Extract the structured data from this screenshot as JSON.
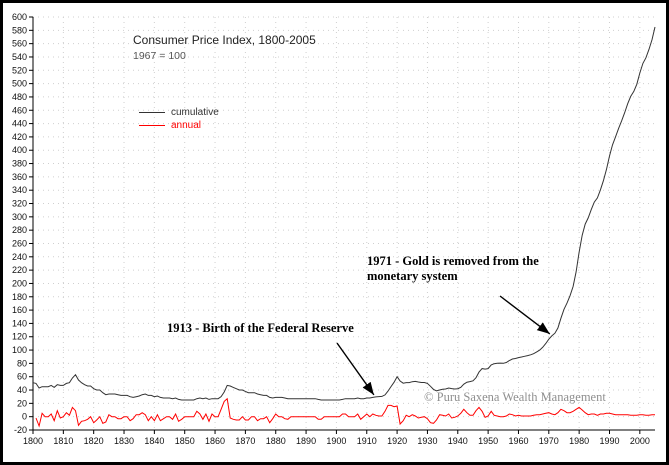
{
  "title": "Consumer Price Index, 1800-2005",
  "subtitle": "1967 = 100",
  "legend": {
    "items": [
      {
        "label": "cumulative",
        "color": "#333333"
      },
      {
        "label": "annual",
        "color": "#ff0000"
      }
    ]
  },
  "annotations_text": {
    "a1913": "1913 - Birth of the Federal Reserve",
    "a1971_line1": "1971  - Gold is removed from the",
    "a1971_line2": "monetary system"
  },
  "watermark": "© Puru Saxena Wealth Management",
  "colors": {
    "grid": "#cfcfcf",
    "axis": "#000000",
    "cumulative": "#333333",
    "annual": "#ff0000"
  },
  "chart_data": {
    "type": "line",
    "title": "Consumer Price Index, 1800-2005",
    "subtitle": "1967 = 100",
    "xlim": [
      1800,
      2005
    ],
    "ylim": [
      -20,
      600
    ],
    "grid": "dotted",
    "legend_position": "upper-left-inside",
    "x_ticks": [
      1800,
      1810,
      1820,
      1830,
      1840,
      1850,
      1860,
      1870,
      1880,
      1890,
      1900,
      1910,
      1920,
      1930,
      1940,
      1950,
      1960,
      1970,
      1980,
      1990,
      2000
    ],
    "y_ticks": [
      -20,
      0,
      20,
      40,
      60,
      80,
      100,
      120,
      140,
      160,
      180,
      200,
      220,
      240,
      260,
      280,
      300,
      320,
      340,
      360,
      380,
      400,
      420,
      440,
      460,
      480,
      500,
      520,
      540,
      560,
      580,
      600
    ],
    "series": [
      {
        "name": "cumulative",
        "color": "#333333",
        "start_year": 1800,
        "values": [
          51,
          50,
          43,
          45,
          45,
          45,
          47,
          44,
          48,
          47,
          47,
          50,
          51,
          58,
          63,
          55,
          51,
          48,
          46,
          46,
          42,
          40,
          40,
          36,
          33,
          34,
          34,
          34,
          33,
          32,
          32,
          32,
          30,
          29,
          30,
          31,
          33,
          34,
          32,
          32,
          30,
          31,
          29,
          28,
          28,
          28,
          27,
          28,
          26,
          25,
          25,
          25,
          25,
          25,
          27,
          28,
          27,
          28,
          26,
          27,
          27,
          27,
          30,
          37,
          47,
          46,
          44,
          42,
          40,
          40,
          38,
          36,
          36,
          36,
          34,
          33,
          32,
          32,
          29,
          28,
          29,
          29,
          29,
          28,
          27,
          27,
          27,
          27,
          27,
          27,
          27,
          27,
          27,
          27,
          26,
          25,
          25,
          25,
          25,
          25,
          25,
          25,
          26,
          27,
          27,
          27,
          27,
          28,
          27,
          27,
          28,
          28,
          29,
          29.7,
          30.1,
          30.4,
          32.7,
          38.4,
          45.1,
          51.8,
          60,
          53.6,
          50.2,
          51.1,
          51.2,
          52.5,
          53,
          52,
          51.3,
          51.3,
          50,
          45.6,
          40.9,
          38.8,
          40.1,
          41.1,
          41.5,
          43,
          42.2,
          41.6,
          42,
          44.1,
          48.8,
          51.8,
          52.7,
          53.9,
          58.5,
          66.9,
          72.1,
          71.4,
          72.1,
          77.8,
          79.5,
          80.1,
          80.5,
          80.2,
          81.4,
          84.3,
          86.6,
          87.3,
          88.7,
          89.6,
          90.6,
          91.7,
          92.9,
          94.5,
          97.2,
          100,
          104.2,
          109.8,
          116.3,
          121.3,
          125.3,
          133.1,
          147.7,
          161.2,
          170.5,
          181.5,
          195.4,
          217.4,
          246.8,
          272.4,
          289.1,
          298.4,
          311.1,
          322.2,
          328.4,
          340.4,
          354.3,
          371.3,
          391.4,
          408,
          420.3,
          432.7,
          444,
          456.5,
          469.9,
          480.8,
          488.3,
          499,
          515.8,
          530.4,
          538.8,
          551.1,
          565.8,
          585
        ]
      },
      {
        "name": "annual",
        "color": "#ff0000",
        "start_year": 1801,
        "values": [
          -2,
          -14,
          5,
          0,
          0,
          4,
          -6,
          9,
          -2,
          0,
          6,
          2,
          14,
          9,
          -13,
          -7,
          -6,
          -4,
          0,
          -9,
          -5,
          0,
          -10,
          -8,
          3,
          0,
          0,
          -3,
          -3,
          0,
          0,
          -6,
          -3,
          3,
          3,
          6,
          3,
          -6,
          0,
          -6,
          3,
          -6,
          -3,
          0,
          0,
          -4,
          4,
          -7,
          -4,
          0,
          0,
          0,
          0,
          8,
          4,
          -4,
          4,
          -7,
          4,
          0,
          0,
          11,
          23,
          27,
          -2,
          -4,
          -5,
          -5,
          0,
          -5,
          -5,
          0,
          0,
          -6,
          -3,
          -3,
          0,
          -9,
          -3,
          4,
          0,
          0,
          -3,
          -4,
          0,
          0,
          0,
          0,
          0,
          0,
          0,
          0,
          0,
          -4,
          -4,
          0,
          0,
          0,
          0,
          0,
          0,
          4,
          4,
          0,
          0,
          0,
          4,
          -4,
          0,
          4,
          0,
          4,
          2,
          1,
          1,
          8,
          17,
          17,
          15,
          16,
          -11,
          -6,
          2,
          0,
          3,
          1,
          -2,
          -1,
          0,
          -3,
          -9,
          -10,
          -5,
          3,
          2,
          1,
          4,
          -2,
          -1,
          1,
          5,
          11,
          6,
          2,
          2,
          9,
          14,
          8,
          -1,
          1,
          8,
          2,
          1,
          0,
          0,
          1,
          4,
          3,
          1,
          2,
          1,
          1,
          1,
          1,
          2,
          3,
          3,
          4,
          5,
          6,
          4,
          3,
          6,
          11,
          9,
          6,
          6,
          8,
          11,
          14,
          10,
          6,
          3,
          4,
          4,
          2,
          4,
          4,
          5,
          5,
          4,
          3,
          3,
          3,
          3,
          3,
          2,
          2,
          2,
          3,
          3,
          2,
          2,
          3,
          3
        ]
      }
    ],
    "annotations": [
      {
        "year": 1913,
        "value": 29.7,
        "text": "1913 - Birth of the Federal Reserve"
      },
      {
        "year": 1971,
        "value": 121.3,
        "text": "1971 - Gold is removed from the monetary system"
      }
    ]
  }
}
